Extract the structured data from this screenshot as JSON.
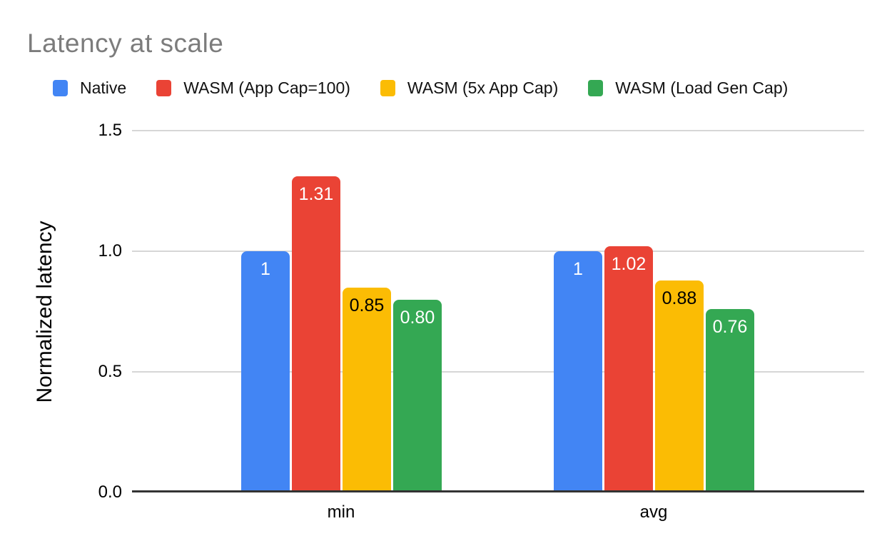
{
  "title": "Latency at scale",
  "legend": {
    "position": "top",
    "items": [
      {
        "label": "Native",
        "color": "#4285F4"
      },
      {
        "label": "WASM (App Cap=100)",
        "color": "#EA4335"
      },
      {
        "label": "WASM (5x App Cap)",
        "color": "#FBBC04"
      },
      {
        "label": "WASM (Load Gen Cap)",
        "color": "#34A853"
      }
    ]
  },
  "chart_data": {
    "type": "bar",
    "title": "Latency at scale",
    "xlabel": "",
    "ylabel": "Normalized latency",
    "categories": [
      "min",
      "avg"
    ],
    "series": [
      {
        "name": "Native",
        "color": "#4285F4",
        "values": [
          1,
          1
        ],
        "value_labels": [
          "1",
          "1"
        ],
        "label_color": "#ffffff"
      },
      {
        "name": "WASM (App Cap=100)",
        "color": "#EA4335",
        "values": [
          1.31,
          1.02
        ],
        "value_labels": [
          "1.31",
          "1.02"
        ],
        "label_color": "#ffffff"
      },
      {
        "name": "WASM (5x App Cap)",
        "color": "#FBBC04",
        "values": [
          0.85,
          0.88
        ],
        "value_labels": [
          "0.85",
          "0.88"
        ],
        "label_color": "#000000"
      },
      {
        "name": "WASM (Load Gen Cap)",
        "color": "#34A853",
        "values": [
          0.8,
          0.76
        ],
        "value_labels": [
          "0.80",
          "0.76"
        ],
        "label_color": "#ffffff"
      }
    ],
    "ylim": [
      0,
      1.5
    ],
    "yticks": [
      "0.0",
      "0.5",
      "1.0",
      "1.5"
    ],
    "grid": true,
    "legend_position": "top",
    "colors": {
      "title_text": "#7c7c7c",
      "axis_text": "#000000",
      "gridline": "#d6d6d6",
      "baseline": "#333333",
      "background": "#ffffff"
    }
  }
}
